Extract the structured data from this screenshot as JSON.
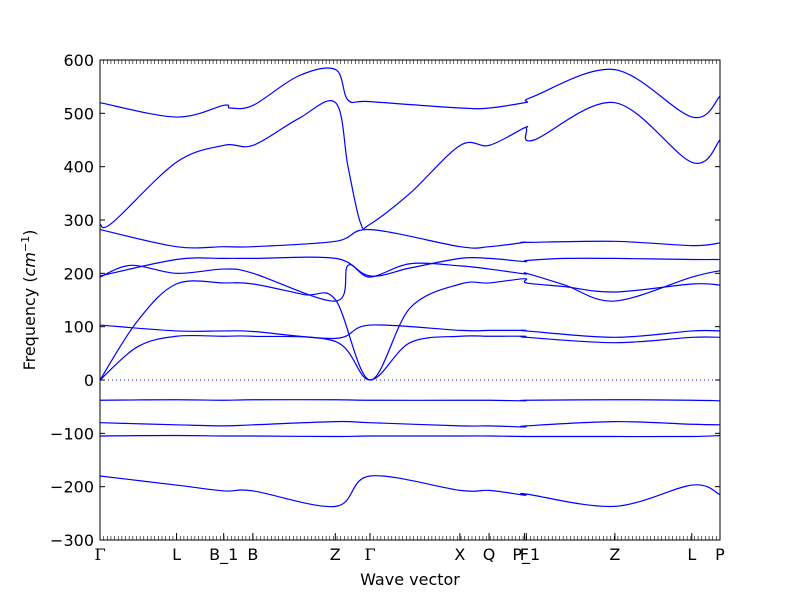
{
  "chart_data": {
    "type": "line",
    "title": "",
    "xlabel": "Wave vector",
    "ylabel_main": "Frequency (",
    "ylabel_unit": "cm",
    "ylabel_exp": "−1",
    "ylabel_close": ")",
    "ylim": [
      -300,
      600
    ],
    "yticks": [
      -300,
      -200,
      -100,
      0,
      100,
      200,
      300,
      400,
      500,
      600
    ],
    "xlim": [
      0,
      1
    ],
    "x_ticks": [
      {
        "label": "Γ",
        "pos": 0.0
      },
      {
        "label": "L",
        "pos": 0.1235
      },
      {
        "label": "B_1",
        "pos": 0.1995
      },
      {
        "label": "B",
        "pos": 0.2465
      },
      {
        "label": "Z",
        "pos": 0.3795
      },
      {
        "label": "Γ",
        "pos": 0.4355
      },
      {
        "label": "X",
        "pos": 0.5805
      },
      {
        "label": "Q",
        "pos": 0.6275
      },
      {
        "label": "F",
        "pos": 0.6845
      },
      {
        "label": "P_1",
        "pos": 0.6875
      },
      {
        "label": "Z",
        "pos": 0.8305
      },
      {
        "label": "L",
        "pos": 0.9545
      },
      {
        "label": "P",
        "pos": 1.0
      }
    ],
    "zero_line": true,
    "line_color": "#0000ff",
    "series": [
      {
        "x": [
          0,
          0.123,
          0.2,
          0.247,
          0.38,
          0.4355,
          0.581,
          0.628,
          0.685,
          0.688,
          0.83,
          0.955,
          1
        ],
        "y": [
          -180,
          -197,
          -208,
          -208,
          -237,
          -180,
          -207,
          -207,
          -216,
          -214,
          -237,
          -197,
          -215
        ]
      },
      {
        "x": [
          0,
          0.123,
          0.2,
          0.247,
          0.38,
          0.4355,
          0.581,
          0.628,
          0.685,
          0.688,
          0.83,
          0.955,
          1
        ],
        "y": [
          -105,
          -104,
          -105,
          -105,
          -106,
          -105,
          -105,
          -105,
          -106,
          -106,
          -106,
          -106,
          -104
        ]
      },
      {
        "x": [
          0,
          0.123,
          0.2,
          0.247,
          0.38,
          0.4355,
          0.581,
          0.628,
          0.685,
          0.688,
          0.83,
          0.955,
          1
        ],
        "y": [
          -80,
          -84,
          -86,
          -84,
          -78,
          -80,
          -86,
          -86,
          -88,
          -86,
          -78,
          -83,
          -84
        ]
      },
      {
        "x": [
          0,
          0.123,
          0.2,
          0.247,
          0.38,
          0.4355,
          0.581,
          0.628,
          0.685,
          0.688,
          0.83,
          0.955,
          1
        ],
        "y": [
          -38,
          -37,
          -38,
          -37,
          -37,
          -38,
          -38,
          -38,
          -39,
          -38,
          -37,
          -38,
          -39
        ]
      },
      {
        "x": [
          0,
          0.06,
          0.123,
          0.2,
          0.247,
          0.33,
          0.38,
          0.4355,
          0.5,
          0.581,
          0.628,
          0.685,
          0.688,
          0.75,
          0.83,
          0.955,
          1
        ],
        "y": [
          0,
          110,
          180,
          182,
          180,
          160,
          150,
          0,
          135,
          180,
          182,
          190,
          182,
          175,
          165,
          180,
          178
        ]
      },
      {
        "x": [
          0,
          0.06,
          0.123,
          0.2,
          0.247,
          0.38,
          0.4355,
          0.5,
          0.581,
          0.628,
          0.685,
          0.688,
          0.83,
          0.955,
          1
        ],
        "y": [
          0,
          62,
          82,
          82,
          82,
          72,
          0,
          70,
          82,
          82,
          82,
          80,
          70,
          80,
          80
        ]
      },
      {
        "x": [
          0,
          0.123,
          0.2,
          0.247,
          0.38,
          0.4355,
          0.581,
          0.628,
          0.685,
          0.688,
          0.83,
          0.955,
          1
        ],
        "y": [
          103,
          92,
          92,
          91,
          78,
          103,
          93,
          93,
          93,
          92,
          80,
          92,
          92
        ]
      },
      {
        "x": [
          0,
          0.05,
          0.123,
          0.2,
          0.247,
          0.38,
          0.4,
          0.4355,
          0.5,
          0.581,
          0.628,
          0.685,
          0.688,
          0.75,
          0.83,
          0.955,
          1
        ],
        "y": [
          193,
          215,
          200,
          208,
          200,
          148,
          215,
          193,
          218,
          214,
          208,
          199,
          200,
          178,
          148,
          193,
          205
        ]
      },
      {
        "x": [
          0,
          0.123,
          0.2,
          0.247,
          0.38,
          0.4355,
          0.5,
          0.581,
          0.628,
          0.685,
          0.688,
          0.75,
          0.83,
          0.955,
          1
        ],
        "y": [
          195,
          226,
          228,
          228,
          228,
          195,
          210,
          228,
          228,
          222,
          224,
          228,
          228,
          226,
          226
        ]
      },
      {
        "x": [
          0,
          0.123,
          0.2,
          0.247,
          0.38,
          0.4355,
          0.581,
          0.628,
          0.685,
          0.688,
          0.83,
          0.955,
          1
        ],
        "y": [
          282,
          250,
          250,
          250,
          260,
          282,
          250,
          250,
          258,
          258,
          260,
          252,
          257
        ]
      },
      {
        "x": [
          0,
          0.02,
          0.123,
          0.2,
          0.247,
          0.32,
          0.38,
          0.4,
          0.42,
          0.4355,
          0.5,
          0.581,
          0.628,
          0.685,
          0.688,
          0.7,
          0.83,
          0.955,
          1
        ],
        "y": [
          292,
          295,
          408,
          440,
          440,
          490,
          520,
          400,
          295,
          292,
          350,
          440,
          440,
          473,
          470,
          450,
          520,
          408,
          450
        ]
      },
      {
        "x": [
          0,
          0.123,
          0.2,
          0.21,
          0.247,
          0.32,
          0.38,
          0.4,
          0.4355,
          0.581,
          0.628,
          0.685,
          0.688,
          0.7,
          0.83,
          0.955,
          1
        ],
        "y": [
          520,
          493,
          515,
          510,
          515,
          570,
          582,
          525,
          522,
          510,
          510,
          520,
          522,
          532,
          582,
          493,
          532
        ]
      }
    ]
  }
}
